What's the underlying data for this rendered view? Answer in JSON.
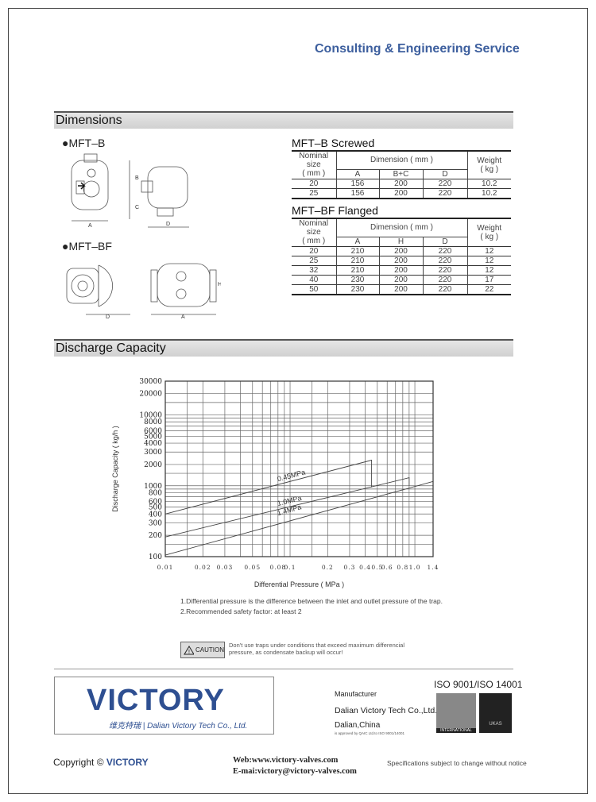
{
  "header": {
    "title": "Consulting & Engineering Service"
  },
  "dimensions": {
    "section_title": "Dimensions",
    "mft_b_label": "●MFT–B",
    "mft_bf_label": "●MFT–BF",
    "drawing_labels": {
      "b": "B",
      "c": "C",
      "a": "A",
      "d": "D",
      "h": "H"
    }
  },
  "table_b": {
    "title": "MFT–B  Screwed",
    "col_size": "Nominal size",
    "col_size_unit": "( mm )",
    "col_dim": "Dimension ( mm )",
    "col_weight": "Weight",
    "col_weight_unit": "( kg )",
    "sub": [
      "A",
      "B+C",
      "D"
    ],
    "rows": [
      [
        "20",
        "156",
        "200",
        "220",
        "10.2"
      ],
      [
        "25",
        "156",
        "200",
        "220",
        "10.2"
      ]
    ]
  },
  "table_bf": {
    "title": "MFT–BF Flanged",
    "col_size": "Nominal size",
    "col_size_unit": "( mm )",
    "col_dim": "Dimension ( mm )",
    "col_weight": "Weight",
    "col_weight_unit": "( kg )",
    "sub": [
      "A",
      "H",
      "D"
    ],
    "rows": [
      [
        "20",
        "210",
        "200",
        "220",
        "12"
      ],
      [
        "25",
        "210",
        "200",
        "220",
        "12"
      ],
      [
        "32",
        "210",
        "200",
        "220",
        "12"
      ],
      [
        "40",
        "230",
        "200",
        "220",
        "17"
      ],
      [
        "50",
        "230",
        "200",
        "220",
        "22"
      ]
    ]
  },
  "discharge": {
    "section_title": "Discharge Capacity"
  },
  "chart_data": {
    "type": "line",
    "xscale": "log",
    "yscale": "log",
    "xlabel": "Differential Pressure ( MPa )",
    "ylabel": "Discharge Capacity ( kg/h )",
    "xlim": [
      0.01,
      1.4
    ],
    "ylim": [
      100,
      30000
    ],
    "grid": true,
    "xticks": [
      0.01,
      0.02,
      0.03,
      0.05,
      0.08,
      0.1,
      0.2,
      0.3,
      0.4,
      0.5,
      0.6,
      0.8,
      1.0,
      1.4
    ],
    "xtick_labels": [
      "0.01",
      "0.02",
      "0.03",
      "0.05",
      "0.08",
      "0.1",
      "0.2",
      "0.3",
      "0.4",
      "0.5",
      "0.6",
      "0.8",
      "1.0",
      "1.4"
    ],
    "yticks": [
      100,
      200,
      300,
      400,
      500,
      600,
      800,
      1000,
      2000,
      3000,
      4000,
      5000,
      6000,
      8000,
      10000,
      20000,
      30000
    ],
    "ytick_labels": [
      "100",
      "200",
      "300",
      "400",
      "500",
      "600",
      "800",
      "1000",
      "2000",
      "3000",
      "4000",
      "5000",
      "6000",
      "8000",
      "10000",
      "20000",
      "30000"
    ],
    "series": [
      {
        "name": "0.45MPa",
        "x": [
          0.01,
          0.45,
          0.45
        ],
        "y": [
          400,
          2300,
          950
        ]
      },
      {
        "name": "1.0MPa",
        "x": [
          0.01,
          0.9,
          0.9
        ],
        "y": [
          190,
          1300,
          1000
        ]
      },
      {
        "name": "1.4MPa",
        "x": [
          0.01,
          1.4
        ],
        "y": [
          105,
          1150
        ]
      }
    ]
  },
  "notes": [
    "1.Differential pressure is the difference between the inlet and outlet pressure of the trap.",
    "2.Recommended safety factor: at least 2"
  ],
  "caution": {
    "label": "CAUTION",
    "text1": "Don't use traps under conditions that exceed maximum differencial",
    "text2": "pressure, as condensate backup will occur!"
  },
  "footer": {
    "logo_text": "VICTORY",
    "logo_sub": "维克特瑞 | Dalian Victory Tech Co., Ltd.",
    "manufacturer_label": "Manufacturer",
    "company": "Dalian Victory Tech Co.,Ltd.",
    "city": "Dalian,China",
    "approval": "is approved by QAIC Ltd.to ISO 9001/14001",
    "iso": "ISO 9001/ISO 14001",
    "qa_badge": "INTERNATIONAL",
    "ukas_badge": "UKAS",
    "copyright": "Copyright ©",
    "copyright_brand": "VICTORY",
    "web": "Web:www.victory-valves.com",
    "email": "E-mai:victory@victory-valves.com",
    "notice": "Specifications subject to change without notice"
  }
}
